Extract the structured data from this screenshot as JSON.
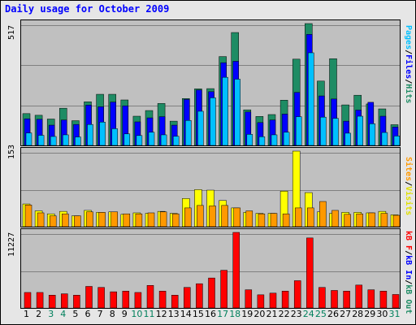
{
  "title": "Daily usage for October 2009",
  "colors": {
    "hits": "#1e8c64",
    "files": "#0000ff",
    "pages": "#00c0ff",
    "visits": "#ffff00",
    "sites": "#ff9900",
    "kbytes": "#ff0000",
    "weekend_day": "#00805c",
    "weekday_day": "#000000"
  },
  "axes": {
    "top_max": "517",
    "mid_max": "153",
    "bottom_max": "11227"
  },
  "legend": {
    "pages": "Pages",
    "files": "Files",
    "hits": "Hits",
    "sites": "Sites",
    "visits": "Visits",
    "kb_f": "kB F",
    "kb_in": "kB In",
    "kb_out": "kB Out",
    "sep": "/"
  },
  "chart_data": {
    "type": "bar",
    "title": "Daily usage for October 2009",
    "categories": [
      "1",
      "2",
      "3",
      "4",
      "5",
      "6",
      "7",
      "8",
      "9",
      "10",
      "11",
      "12",
      "13",
      "14",
      "15",
      "16",
      "17",
      "18",
      "19",
      "20",
      "21",
      "22",
      "23",
      "24",
      "25",
      "26",
      "27",
      "28",
      "29",
      "30",
      "31"
    ],
    "weekend_days": [
      3,
      4,
      10,
      11,
      17,
      18,
      24,
      25,
      31
    ],
    "panels": [
      {
        "ylim": [
          0,
          517
        ],
        "series": [
          {
            "name": "Hits",
            "values": [
              135,
              128,
              112,
              158,
              105,
              185,
              217,
              217,
              193,
              124,
              148,
              178,
              103,
              199,
              240,
              241,
              377,
              479,
              151,
              123,
              131,
              192,
              366,
              517,
              273,
              368,
              172,
              213,
              176,
              155,
              88
            ]
          },
          {
            "name": "Files",
            "values": [
              113,
              111,
              86,
              108,
              89,
              171,
              164,
              184,
              168,
              100,
              117,
              122,
              86,
              195,
              235,
              228,
              351,
              357,
              142,
              97,
              108,
              133,
              225,
              471,
              210,
              197,
              103,
              150,
              183,
              124,
              78
            ]
          },
          {
            "name": "Pages",
            "values": [
              53,
              43,
              38,
              45,
              36,
              89,
              99,
              71,
              49,
              42,
              56,
              45,
              39,
              106,
              145,
              202,
              289,
              281,
              47,
              37,
              45,
              56,
              122,
              393,
              120,
              115,
              52,
              124,
              92,
              55,
              40
            ]
          }
        ]
      },
      {
        "ylim": [
          0,
          153
        ],
        "series": [
          {
            "name": "Visits",
            "values": [
              46,
              32,
              26,
              31,
              22,
              33,
              29,
              30,
              25,
              28,
              27,
              31,
              27,
              57,
              75,
              74,
              53,
              38,
              29,
              27,
              27,
              72,
              153,
              69,
              30,
              27,
              29,
              29,
              28,
              31,
              24
            ]
          },
          {
            "name": "Sites",
            "values": [
              44,
              28,
              22,
              26,
              22,
              30,
              29,
              30,
              26,
              26,
              28,
              30,
              26,
              38,
              43,
              42,
              43,
              38,
              32,
              26,
              27,
              26,
              38,
              38,
              51,
              33,
              25,
              26,
              28,
              27,
              23
            ]
          }
        ]
      },
      {
        "ylim": [
          0,
          11227
        ],
        "series": [
          {
            "name": "kB F",
            "values": [
              2300,
              2300,
              1900,
              2100,
              1900,
              3200,
              3050,
              2400,
              2500,
              2300,
              3350,
              2500,
              1900,
              3050,
              3600,
              4450,
              5600,
              11227,
              2700,
              1950,
              2200,
              2500,
              4050,
              10400,
              3050,
              2600,
              2500,
              3400,
              2700,
              2500,
              2000
            ]
          }
        ]
      }
    ]
  }
}
